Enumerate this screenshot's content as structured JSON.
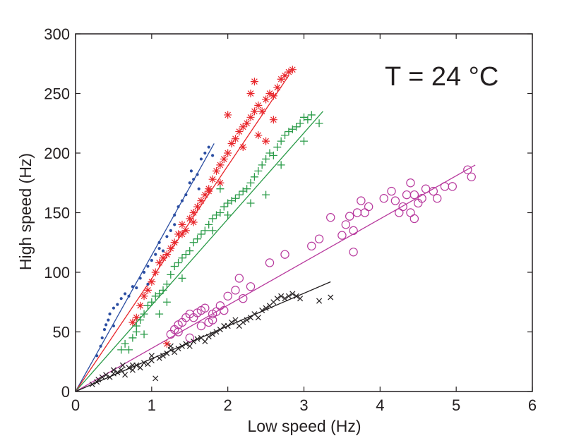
{
  "chart_data": {
    "type": "scatter",
    "title": "",
    "annotation": "T = 24 °C",
    "xlabel": "Low speed (Hz)",
    "ylabel": "High speed (Hz)",
    "xlim": [
      0,
      6
    ],
    "ylim": [
      0,
      300
    ],
    "xticks": [
      0,
      1,
      2,
      3,
      4,
      5,
      6
    ],
    "yticks": [
      0,
      50,
      100,
      150,
      200,
      250,
      300
    ],
    "grid": false,
    "legend": "none",
    "series": [
      {
        "name": "dots",
        "marker": "dot",
        "color": "#2b4ea2",
        "fit": {
          "x": [
            0,
            1.82
          ],
          "y": [
            0,
            208
          ]
        },
        "points": [
          [
            0.28,
            30
          ],
          [
            0.33,
            38
          ],
          [
            0.35,
            45
          ],
          [
            0.38,
            52
          ],
          [
            0.4,
            56
          ],
          [
            0.43,
            60
          ],
          [
            0.45,
            65
          ],
          [
            0.5,
            70
          ],
          [
            0.55,
            73
          ],
          [
            0.6,
            78
          ],
          [
            0.65,
            82
          ],
          [
            0.7,
            80
          ],
          [
            0.75,
            88
          ],
          [
            0.8,
            87
          ],
          [
            0.85,
            95
          ],
          [
            0.9,
            100
          ],
          [
            0.95,
            105
          ],
          [
            1.0,
            110
          ],
          [
            1.05,
            115
          ],
          [
            1.1,
            120
          ],
          [
            1.15,
            118
          ],
          [
            1.2,
            130
          ],
          [
            1.25,
            135
          ],
          [
            1.3,
            140
          ],
          [
            1.35,
            155
          ],
          [
            1.4,
            160
          ],
          [
            1.45,
            165
          ],
          [
            1.5,
            175
          ],
          [
            1.52,
            185
          ],
          [
            1.55,
            178
          ],
          [
            1.6,
            182
          ],
          [
            1.65,
            195
          ],
          [
            1.7,
            200
          ],
          [
            1.75,
            205
          ],
          [
            1.8,
            198
          ],
          [
            1.1,
            125
          ],
          [
            1.3,
            148
          ],
          [
            1.62,
            170
          ],
          [
            0.95,
            90
          ],
          [
            0.5,
            55
          ]
        ]
      },
      {
        "name": "asterisks",
        "marker": "asterisk",
        "color": "#e8262b",
        "fit": {
          "x": [
            0,
            2.8
          ],
          "y": [
            0,
            265
          ]
        },
        "points": [
          [
            0.75,
            58
          ],
          [
            0.8,
            62
          ],
          [
            0.85,
            72
          ],
          [
            0.9,
            80
          ],
          [
            0.95,
            85
          ],
          [
            1.0,
            92
          ],
          [
            1.05,
            100
          ],
          [
            1.1,
            108
          ],
          [
            1.15,
            112
          ],
          [
            1.2,
            115
          ],
          [
            1.25,
            120
          ],
          [
            1.3,
            125
          ],
          [
            1.35,
            132
          ],
          [
            1.4,
            140
          ],
          [
            1.45,
            135
          ],
          [
            1.5,
            145
          ],
          [
            1.55,
            150
          ],
          [
            1.6,
            155
          ],
          [
            1.65,
            160
          ],
          [
            1.7,
            165
          ],
          [
            1.75,
            170
          ],
          [
            1.8,
            178
          ],
          [
            1.85,
            185
          ],
          [
            1.9,
            190
          ],
          [
            1.95,
            195
          ],
          [
            2.0,
            200
          ],
          [
            2.05,
            208
          ],
          [
            2.1,
            212
          ],
          [
            2.15,
            218
          ],
          [
            2.2,
            222
          ],
          [
            2.25,
            225
          ],
          [
            2.3,
            230
          ],
          [
            2.35,
            235
          ],
          [
            2.4,
            240
          ],
          [
            2.45,
            235
          ],
          [
            2.5,
            245
          ],
          [
            2.55,
            250
          ],
          [
            2.6,
            248
          ],
          [
            2.65,
            255
          ],
          [
            2.7,
            262
          ],
          [
            2.75,
            265
          ],
          [
            2.8,
            268
          ],
          [
            2.85,
            270
          ],
          [
            2.3,
            250
          ],
          [
            2.4,
            215
          ],
          [
            2.2,
            205
          ],
          [
            2.6,
            228
          ],
          [
            1.4,
            132
          ],
          [
            1.55,
            142
          ],
          [
            1.75,
            168
          ],
          [
            2.0,
            232
          ],
          [
            2.35,
            260
          ],
          [
            1.9,
            175
          ],
          [
            1.2,
            40
          ],
          [
            2.5,
            210
          ]
        ]
      },
      {
        "name": "plus",
        "marker": "plus",
        "color": "#2a9b48",
        "fit": {
          "x": [
            0,
            3.25
          ],
          "y": [
            0,
            235
          ]
        },
        "points": [
          [
            0.6,
            35
          ],
          [
            0.65,
            40
          ],
          [
            0.7,
            35
          ],
          [
            0.75,
            45
          ],
          [
            0.8,
            55
          ],
          [
            0.85,
            60
          ],
          [
            0.9,
            65
          ],
          [
            0.95,
            72
          ],
          [
            1.0,
            75
          ],
          [
            1.05,
            80
          ],
          [
            1.1,
            82
          ],
          [
            1.15,
            85
          ],
          [
            1.2,
            90
          ],
          [
            1.25,
            98
          ],
          [
            1.3,
            105
          ],
          [
            1.35,
            108
          ],
          [
            1.4,
            112
          ],
          [
            1.45,
            115
          ],
          [
            1.5,
            118
          ],
          [
            1.55,
            125
          ],
          [
            1.6,
            128
          ],
          [
            1.65,
            132
          ],
          [
            1.7,
            135
          ],
          [
            1.75,
            140
          ],
          [
            1.8,
            145
          ],
          [
            1.85,
            148
          ],
          [
            1.9,
            150
          ],
          [
            1.95,
            155
          ],
          [
            2.0,
            158
          ],
          [
            2.05,
            160
          ],
          [
            2.1,
            162
          ],
          [
            2.15,
            165
          ],
          [
            2.2,
            168
          ],
          [
            2.25,
            170
          ],
          [
            2.3,
            175
          ],
          [
            2.35,
            180
          ],
          [
            2.4,
            185
          ],
          [
            2.45,
            190
          ],
          [
            2.5,
            195
          ],
          [
            2.55,
            200
          ],
          [
            2.6,
            198
          ],
          [
            2.65,
            205
          ],
          [
            2.7,
            210
          ],
          [
            2.75,
            215
          ],
          [
            2.8,
            218
          ],
          [
            2.85,
            220
          ],
          [
            2.9,
            222
          ],
          [
            2.95,
            225
          ],
          [
            3.0,
            230
          ],
          [
            3.05,
            228
          ],
          [
            3.1,
            232
          ],
          [
            3.2,
            225
          ],
          [
            2.0,
            148
          ],
          [
            2.3,
            158
          ],
          [
            2.5,
            165
          ],
          [
            1.8,
            135
          ],
          [
            1.4,
            95
          ],
          [
            1.9,
            170
          ],
          [
            2.7,
            190
          ],
          [
            3.0,
            210
          ],
          [
            0.8,
            50
          ],
          [
            1.1,
            65
          ],
          [
            0.9,
            48
          ],
          [
            1.2,
            75
          ]
        ]
      },
      {
        "name": "circles",
        "marker": "circle",
        "color": "#b83a9e",
        "fit": {
          "x": [
            0,
            5.25
          ],
          "y": [
            0,
            190
          ]
        },
        "points": [
          [
            1.25,
            48
          ],
          [
            1.3,
            52
          ],
          [
            1.35,
            56
          ],
          [
            1.4,
            58
          ],
          [
            1.45,
            62
          ],
          [
            1.5,
            65
          ],
          [
            1.55,
            62
          ],
          [
            1.6,
            66
          ],
          [
            1.65,
            68
          ],
          [
            1.7,
            70
          ],
          [
            1.75,
            58
          ],
          [
            1.8,
            65
          ],
          [
            1.85,
            67
          ],
          [
            1.9,
            72
          ],
          [
            2.0,
            80
          ],
          [
            2.1,
            85
          ],
          [
            2.15,
            95
          ],
          [
            2.2,
            78
          ],
          [
            2.3,
            88
          ],
          [
            2.55,
            108
          ],
          [
            2.75,
            115
          ],
          [
            3.1,
            122
          ],
          [
            3.2,
            128
          ],
          [
            3.35,
            146
          ],
          [
            3.5,
            131
          ],
          [
            3.55,
            140
          ],
          [
            3.6,
            147
          ],
          [
            3.65,
            117
          ],
          [
            3.7,
            150
          ],
          [
            3.75,
            160
          ],
          [
            3.8,
            150
          ],
          [
            3.85,
            155
          ],
          [
            4.05,
            162
          ],
          [
            4.15,
            168
          ],
          [
            4.2,
            160
          ],
          [
            4.25,
            150
          ],
          [
            4.3,
            155
          ],
          [
            4.35,
            165
          ],
          [
            4.4,
            175
          ],
          [
            4.45,
            145
          ],
          [
            4.5,
            158
          ],
          [
            4.55,
            162
          ],
          [
            4.6,
            170
          ],
          [
            4.7,
            168
          ],
          [
            4.75,
            162
          ],
          [
            4.85,
            172
          ],
          [
            4.95,
            172
          ],
          [
            5.15,
            186
          ],
          [
            5.2,
            180
          ],
          [
            1.35,
            50
          ],
          [
            1.5,
            45
          ],
          [
            1.65,
            55
          ],
          [
            1.8,
            60
          ],
          [
            1.95,
            68
          ],
          [
            4.4,
            150
          ],
          [
            4.45,
            165
          ],
          [
            3.65,
            135
          ]
        ]
      },
      {
        "name": "crosses",
        "marker": "x",
        "color": "#231f20",
        "fit": {
          "x": [
            0,
            3.35
          ],
          "y": [
            0,
            92
          ]
        },
        "points": [
          [
            0.22,
            6
          ],
          [
            0.28,
            8
          ],
          [
            0.3,
            10
          ],
          [
            0.35,
            12
          ],
          [
            0.4,
            14
          ],
          [
            0.45,
            12
          ],
          [
            0.5,
            15
          ],
          [
            0.55,
            16
          ],
          [
            0.6,
            18
          ],
          [
            0.62,
            22
          ],
          [
            0.65,
            14
          ],
          [
            0.7,
            20
          ],
          [
            0.75,
            18
          ],
          [
            0.8,
            22
          ],
          [
            0.85,
            20
          ],
          [
            0.9,
            24
          ],
          [
            0.95,
            23
          ],
          [
            1.0,
            26
          ],
          [
            1.05,
            11
          ],
          [
            1.1,
            28
          ],
          [
            1.15,
            30
          ],
          [
            1.2,
            32
          ],
          [
            1.25,
            35
          ],
          [
            1.3,
            33
          ],
          [
            1.35,
            36
          ],
          [
            1.4,
            38
          ],
          [
            1.45,
            40
          ],
          [
            1.5,
            38
          ],
          [
            1.55,
            42
          ],
          [
            1.6,
            44
          ],
          [
            1.65,
            45
          ],
          [
            1.7,
            42
          ],
          [
            1.75,
            46
          ],
          [
            1.8,
            48
          ],
          [
            1.85,
            50
          ],
          [
            1.9,
            52
          ],
          [
            1.95,
            55
          ],
          [
            2.0,
            55
          ],
          [
            2.05,
            58
          ],
          [
            2.1,
            60
          ],
          [
            2.15,
            55
          ],
          [
            2.2,
            58
          ],
          [
            2.25,
            60
          ],
          [
            2.3,
            62
          ],
          [
            2.35,
            65
          ],
          [
            2.4,
            62
          ],
          [
            2.45,
            68
          ],
          [
            2.5,
            70
          ],
          [
            2.55,
            72
          ],
          [
            2.6,
            75
          ],
          [
            2.65,
            78
          ],
          [
            2.7,
            80
          ],
          [
            2.75,
            78
          ],
          [
            2.8,
            80
          ],
          [
            2.85,
            82
          ],
          [
            2.9,
            80
          ],
          [
            2.95,
            78
          ],
          [
            3.2,
            76
          ],
          [
            3.35,
            79
          ],
          [
            0.5,
            18
          ],
          [
            0.75,
            22
          ],
          [
            1.0,
            30
          ],
          [
            1.25,
            38
          ]
        ]
      }
    ]
  }
}
